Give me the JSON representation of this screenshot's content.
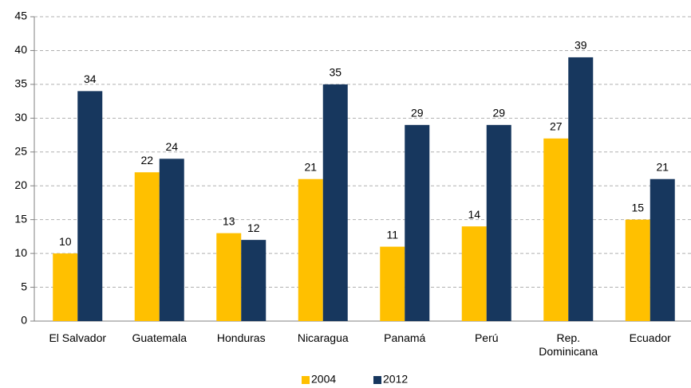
{
  "chart_data": {
    "type": "bar",
    "categories": [
      "El Salvador",
      "Guatemala",
      "Honduras",
      "Nicaragua",
      "Panamá",
      "Perú",
      "Rep. Dominicana",
      "Ecuador"
    ],
    "series": [
      {
        "name": "2004",
        "color": "#FFC000",
        "values": [
          10,
          22,
          13,
          21,
          11,
          14,
          27,
          15
        ]
      },
      {
        "name": "2012",
        "color": "#17375E",
        "values": [
          34,
          24,
          12,
          35,
          29,
          29,
          39,
          21
        ]
      }
    ],
    "ylim": [
      0,
      45
    ],
    "yticks": [
      0,
      5,
      10,
      15,
      20,
      25,
      30,
      35,
      40,
      45
    ],
    "grid": true,
    "legend": "bottom"
  }
}
